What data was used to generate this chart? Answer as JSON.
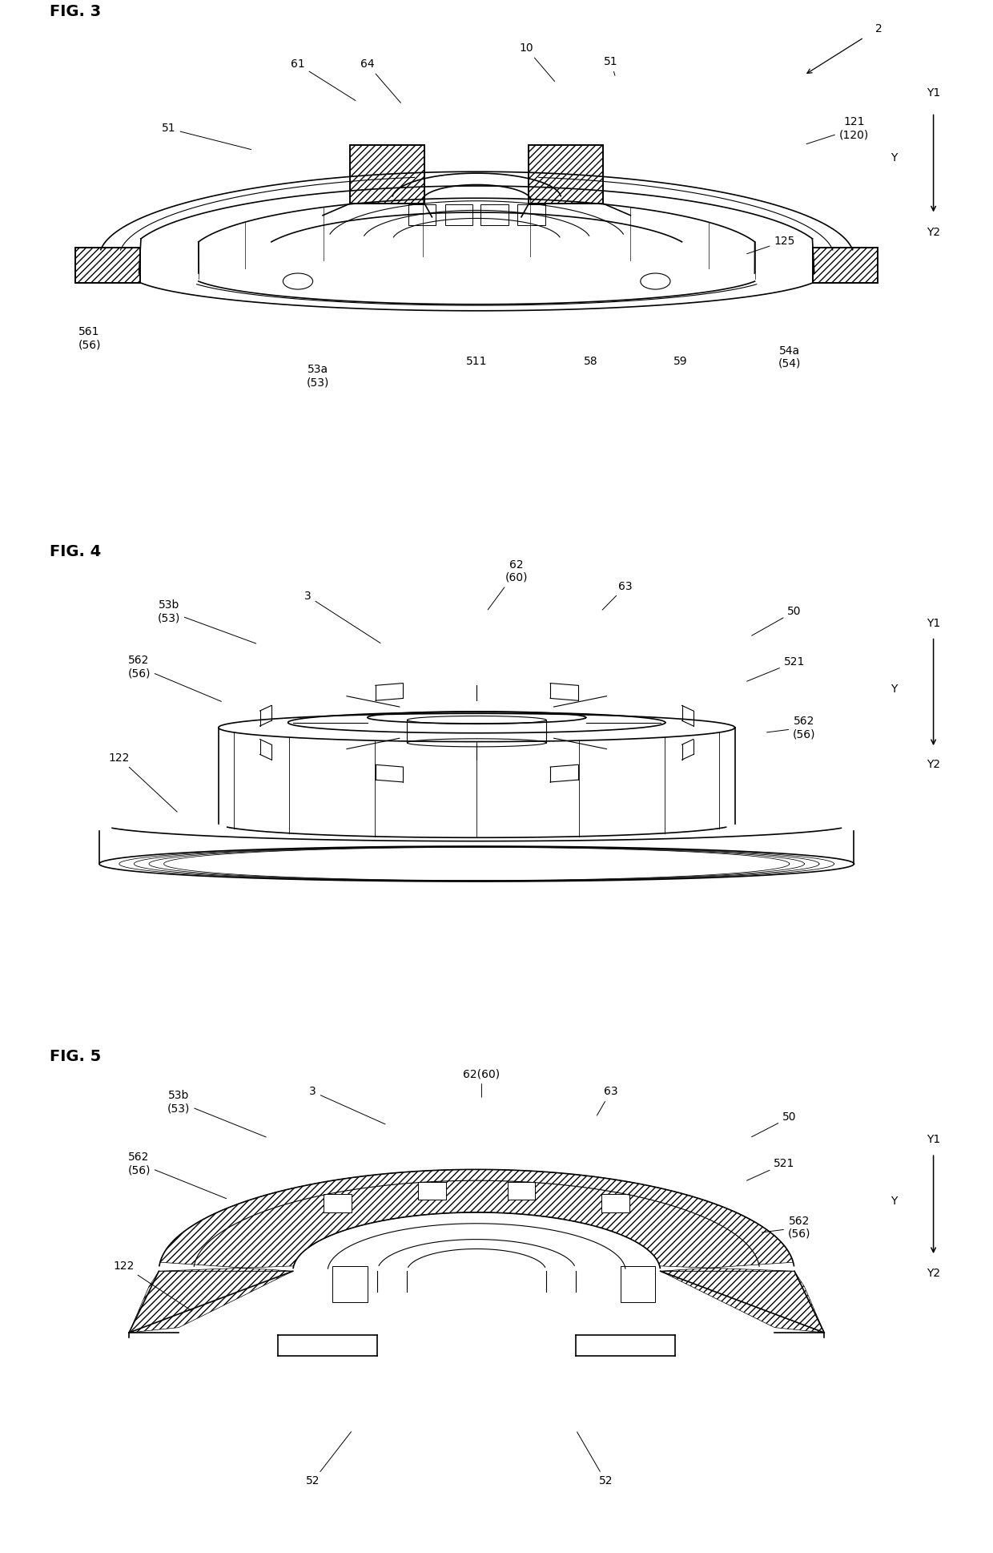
{
  "background_color": "#ffffff",
  "line_color": "#000000",
  "fig3_label": "FIG. 3",
  "fig4_label": "FIG. 4",
  "fig5_label": "FIG. 5"
}
